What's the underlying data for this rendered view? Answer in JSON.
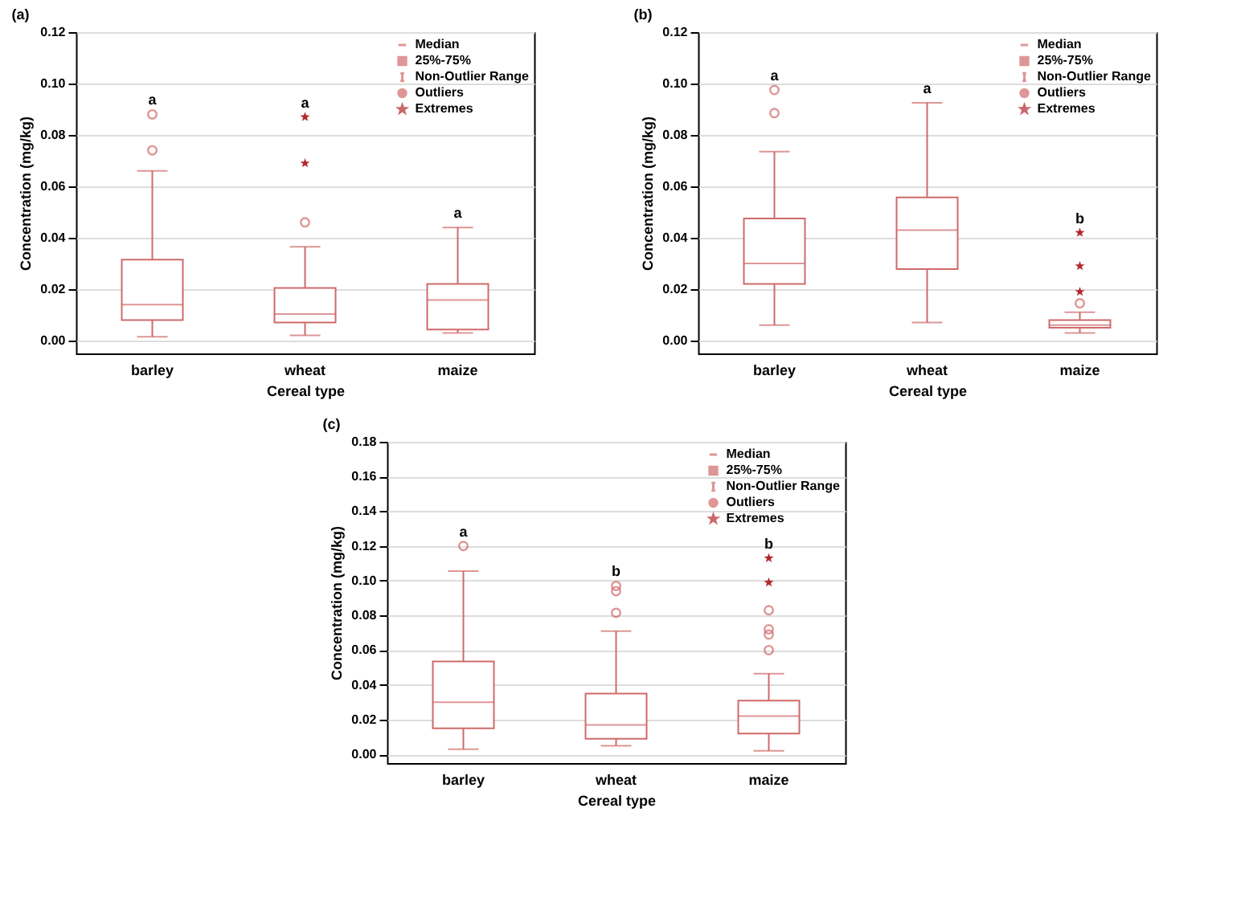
{
  "chart_data": [
    {
      "type": "box",
      "title": "(a)",
      "xlabel": "Cereal type",
      "ylabel": "Concentration (mg/kg)",
      "categories": [
        "barley",
        "wheat",
        "maize"
      ],
      "ylim": [
        -0.005,
        0.12
      ],
      "yticks": [
        {
          "value": 0,
          "label": "0.00"
        },
        {
          "value": 0.02,
          "label": "0.02"
        },
        {
          "value": 0.04,
          "label": "0.04"
        },
        {
          "value": 0.06,
          "label": "0.06"
        },
        {
          "value": 0.08,
          "label": "0.08"
        },
        {
          "value": 0.1,
          "label": "0.10"
        },
        {
          "value": 0.12,
          "label": "0.12"
        }
      ],
      "grid": "y",
      "legend": "top right",
      "annotations": [
        "Median",
        "25%-75%",
        "Non-Outlier Range",
        "Outliers",
        "a",
        "a",
        "a"
      ],
      "series": [
        {
          "type": "box",
          "color": "#d06a6a",
          "boxes": [
            {
              "low": 0.0015,
              "q1": 0.008,
              "median": 0.014,
              "q3": 0.0315,
              "high": 0.066,
              "outliers": [
                0.074,
                0.088
              ]
            },
            {
              "low": 0.002,
              "q1": 0.007,
              "median": 0.0103,
              "q3": 0.0205,
              "high": 0.0365,
              "outliers": [
                0.046
              ]
            },
            {
              "low": 0.003,
              "q1": 0.0043,
              "median": 0.0158,
              "q3": 0.022,
              "high": 0.044
            }
          ]
        },
        {
          "type": "scatter",
          "name": "Extremes",
          "color": "#b3282d",
          "marker": "star",
          "x": [
            "wheat",
            "wheat"
          ],
          "values": [
            0.069,
            0.087
          ]
        }
      ]
    },
    {
      "type": "box",
      "title": "(b)",
      "xlabel": "Cereal type",
      "ylabel": "Concentration (mg/kg)",
      "categories": [
        "barley",
        "wheat",
        "maize"
      ],
      "ylim": [
        -0.005,
        0.12
      ],
      "yticks": [
        {
          "value": 0,
          "label": "0.00"
        },
        {
          "value": 0.02,
          "label": "0.02"
        },
        {
          "value": 0.04,
          "label": "0.04"
        },
        {
          "value": 0.06,
          "label": "0.06"
        },
        {
          "value": 0.08,
          "label": "0.08"
        },
        {
          "value": 0.1,
          "label": "0.10"
        },
        {
          "value": 0.12,
          "label": "0.12"
        }
      ],
      "grid": "y",
      "legend": "top right",
      "annotations": [
        "Median",
        "25%-75%",
        "Non-Outlier Range",
        "Outliers",
        "a",
        "a",
        "b"
      ],
      "series": [
        {
          "type": "box",
          "color": "#d06a6a",
          "boxes": [
            {
              "low": 0.006,
              "q1": 0.022,
              "median": 0.03,
              "q3": 0.0475,
              "high": 0.0735,
              "outliers": [
                0.0885,
                0.0975
              ]
            },
            {
              "low": 0.007,
              "q1": 0.0278,
              "median": 0.043,
              "q3": 0.0557,
              "high": 0.0925
            },
            {
              "low": 0.003,
              "q1": 0.005,
              "median": 0.006,
              "q3": 0.008,
              "high": 0.011,
              "outliers": [
                0.0145
              ]
            }
          ]
        },
        {
          "type": "scatter",
          "name": "Extremes",
          "color": "#b3282d",
          "marker": "star",
          "x": [
            "maize",
            "maize",
            "maize"
          ],
          "values": [
            0.019,
            0.029,
            0.042
          ]
        }
      ]
    },
    {
      "type": "box",
      "title": "(c)",
      "xlabel": "Cereal type",
      "ylabel": "Concentration (mg/kg)",
      "categories": [
        "barley",
        "wheat",
        "maize"
      ],
      "ylim": [
        -0.005,
        0.18
      ],
      "yticks": [
        {
          "value": 0,
          "label": "0.00"
        },
        {
          "value": 0.02,
          "label": "0.02"
        },
        {
          "value": 0.04,
          "label": "0.04"
        },
        {
          "value": 0.06,
          "label": "0.06"
        },
        {
          "value": 0.08,
          "label": "0.08"
        },
        {
          "value": 0.1,
          "label": "0.10"
        },
        {
          "value": 0.12,
          "label": "0.12"
        },
        {
          "value": 0.14,
          "label": "0.14"
        },
        {
          "value": 0.16,
          "label": "0.16"
        },
        {
          "value": 0.18,
          "label": "0.18"
        }
      ],
      "grid": "y",
      "legend": "top right",
      "annotations": [
        "Median",
        "25%-75%",
        "Non-Outlier Range",
        "Outliers",
        "a",
        "b",
        "b"
      ],
      "series": [
        {
          "type": "box",
          "color": "#d06a6a",
          "boxes": [
            {
              "low": 0.003,
              "q1": 0.015,
              "median": 0.03,
              "q3": 0.0535,
              "high": 0.1055,
              "outliers": [
                0.12
              ]
            },
            {
              "low": 0.005,
              "q1": 0.009,
              "median": 0.017,
              "q3": 0.035,
              "high": 0.071,
              "outliers": [
                0.0815,
                0.094,
                0.097
              ]
            },
            {
              "low": 0.002,
              "q1": 0.012,
              "median": 0.022,
              "q3": 0.031,
              "high": 0.0465,
              "outliers": [
                0.06,
                0.069,
                0.072,
                0.083
              ]
            }
          ]
        },
        {
          "type": "scatter",
          "name": "Extremes",
          "color": "#b3282d",
          "marker": "star",
          "x": [
            "maize",
            "maize"
          ],
          "values": [
            0.099,
            0.113
          ]
        }
      ]
    }
  ]
}
